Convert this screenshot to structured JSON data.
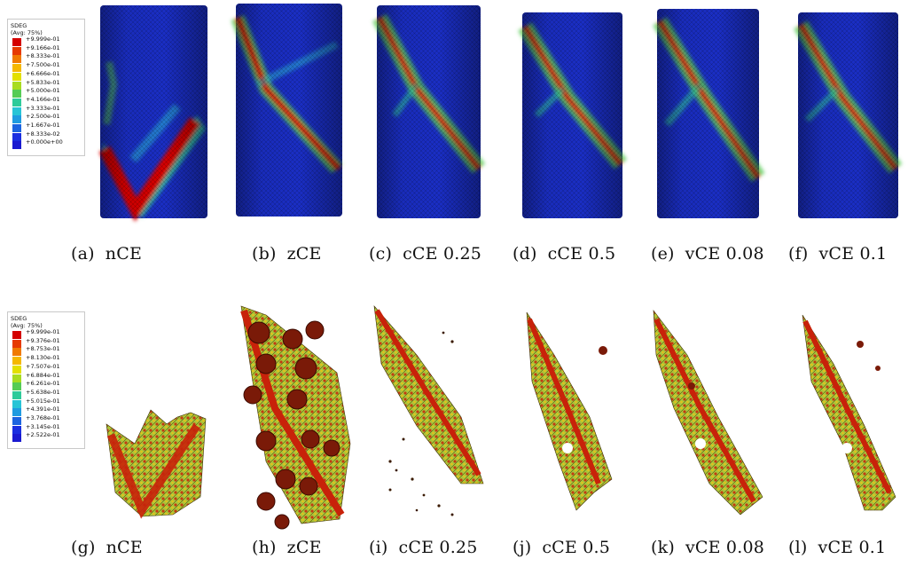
{
  "legend_top": {
    "title": "SDEG",
    "subtitle": "(Avg: 75%)",
    "entries": [
      "+9.999e-01",
      "+9.166e-01",
      "+8.333e-01",
      "+7.500e-01",
      "+6.666e-01",
      "+5.833e-01",
      "+5.000e-01",
      "+4.166e-01",
      "+3.333e-01",
      "+2.500e-01",
      "+1.667e-01",
      "+8.333e-02",
      "+0.000e+00"
    ],
    "colors": [
      "#d40000",
      "#e63a00",
      "#f07a00",
      "#f5b800",
      "#e3e000",
      "#a8dc20",
      "#55cc55",
      "#2ecb9a",
      "#27c4d6",
      "#1f9be0",
      "#1c64e0",
      "#1a2ee0",
      "#1a1ad0"
    ]
  },
  "legend_bottom": {
    "title": "SDEG",
    "subtitle": "(Avg: 75%)",
    "entries": [
      "+9.999e-01",
      "+9.376e-01",
      "+8.753e-01",
      "+8.130e-01",
      "+7.507e-01",
      "+6.884e-01",
      "+6.261e-01",
      "+5.638e-01",
      "+5.015e-01",
      "+4.391e-01",
      "+3.768e-01",
      "+3.145e-01",
      "+2.522e-01"
    ],
    "colors": [
      "#d40000",
      "#e63a00",
      "#f07a00",
      "#f5b800",
      "#e3e000",
      "#a8dc20",
      "#55cc55",
      "#2ecb9a",
      "#27c4d6",
      "#1f9be0",
      "#1c64e0",
      "#1a2ee0",
      "#1a1ad0"
    ]
  },
  "captions_top": [
    {
      "tag": "(a)",
      "label": "nCE"
    },
    {
      "tag": "(b)",
      "label": "zCE"
    },
    {
      "tag": "(c)",
      "label": "cCE 0.25"
    },
    {
      "tag": "(d)",
      "label": "cCE 0.5"
    },
    {
      "tag": "(e)",
      "label": "vCE 0.08"
    },
    {
      "tag": "(f)",
      "label": "vCE 0.1"
    }
  ],
  "captions_bottom": [
    {
      "tag": "(g)",
      "label": "nCE"
    },
    {
      "tag": "(h)",
      "label": "zCE"
    },
    {
      "tag": "(i)",
      "label": "cCE 0.25"
    },
    {
      "tag": "(j)",
      "label": "cCE 0.5"
    },
    {
      "tag": "(k)",
      "label": "vCE 0.08"
    },
    {
      "tag": "(l)",
      "label": "vCE 0.1"
    }
  ]
}
